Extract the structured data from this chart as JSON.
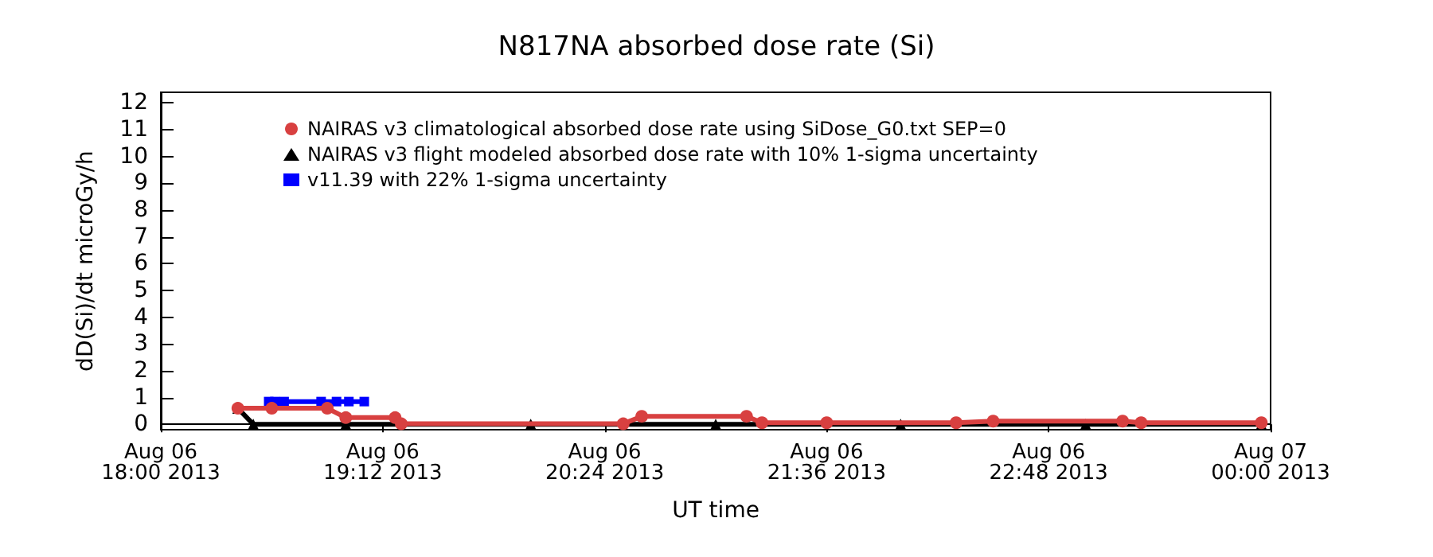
{
  "chart_data": {
    "type": "line",
    "title": "N817NA absorbed dose rate (Si)",
    "xlabel": "UT time",
    "ylabel": "dD(Si)/dt microGy/h",
    "xlim": [
      "2013-08-06T18:00",
      "2013-08-07T00:00"
    ],
    "xticks": [
      {
        "value": "2013-08-06T18:00",
        "label": "Aug 06\n18:00 2013"
      },
      {
        "value": "2013-08-06T19:12",
        "label": "Aug 06\n19:12 2013"
      },
      {
        "value": "2013-08-06T20:24",
        "label": "Aug 06\n20:24 2013"
      },
      {
        "value": "2013-08-06T21:36",
        "label": "Aug 06\n21:36 2013"
      },
      {
        "value": "2013-08-06T22:48",
        "label": "Aug 06\n22:48 2013"
      },
      {
        "value": "2013-08-07T00:00",
        "label": "Aug 07\n00:00 2013"
      }
    ],
    "ylim": [
      -0.2,
      12.4
    ],
    "yticks": [
      0,
      1,
      2,
      3,
      4,
      5,
      6,
      7,
      8,
      9,
      10,
      11,
      12
    ],
    "grid": false,
    "legend": "top left",
    "line_style": "solid",
    "series": [
      {
        "name": "NAIRAS v3 climatological absorbed dose rate using SiDose_G0.txt SEP=0",
        "color": "#d84040",
        "marker": "circle",
        "x": [
          "2013-08-06T18:25",
          "2013-08-06T18:36",
          "2013-08-06T18:54",
          "2013-08-06T19:00",
          "2013-08-06T19:16",
          "2013-08-06T19:18",
          "2013-08-06T20:30",
          "2013-08-06T20:36",
          "2013-08-06T21:10",
          "2013-08-06T21:15",
          "2013-08-06T21:36",
          "2013-08-06T22:18",
          "2013-08-06T22:30",
          "2013-08-06T23:12",
          "2013-08-06T23:18",
          "2013-08-06T23:57"
        ],
        "values": [
          0.6,
          0.6,
          0.6,
          0.25,
          0.25,
          0.02,
          0.02,
          0.3,
          0.3,
          0.06,
          0.06,
          0.06,
          0.12,
          0.12,
          0.06,
          0.06
        ]
      },
      {
        "name": "NAIRAS v3 flight modeled absorbed dose rate with 10% 1-sigma uncertainty",
        "color": "#000000",
        "marker": "triangle",
        "x": [
          "2013-08-06T18:25",
          "2013-08-06T18:30",
          "2013-08-06T19:00",
          "2013-08-06T20:00",
          "2013-08-06T21:00",
          "2013-08-06T22:00",
          "2013-08-06T23:00",
          "2013-08-06T23:57"
        ],
        "values": [
          0.6,
          0.0,
          0.0,
          0.0,
          0.0,
          0.0,
          0.0,
          0.0
        ]
      },
      {
        "name": "v11.39 with 22% 1-sigma uncertainty",
        "color": "#0000ff",
        "marker": "square",
        "x": [
          "2013-08-06T18:35",
          "2013-08-06T18:37",
          "2013-08-06T18:40",
          "2013-08-06T18:52",
          "2013-08-06T18:57",
          "2013-08-06T19:01",
          "2013-08-06T19:06"
        ],
        "values": [
          0.85,
          0.85,
          0.85,
          0.85,
          0.85,
          0.85,
          0.85
        ]
      }
    ]
  }
}
